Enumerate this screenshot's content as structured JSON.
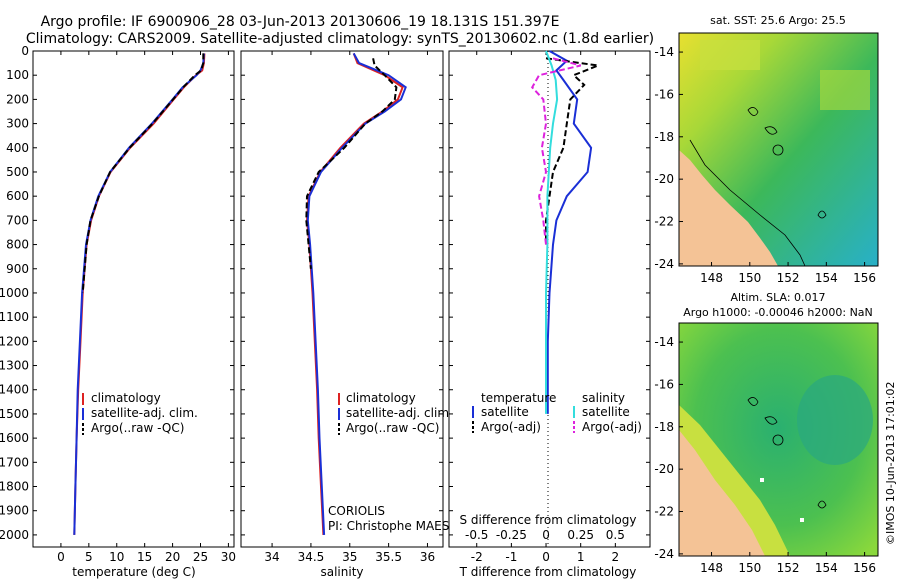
{
  "titles": {
    "line1": "Argo profile: IF 6900906_28 03-Jun-2013 20130606_19 18.131S 151.397E",
    "line2": "Climatology: CARS2009. Satellite-adjusted climatology: synTS_20130602.nc (1.8d earlier)"
  },
  "colors": {
    "climatology": "#dd2222",
    "satellite": "#1a2fd6",
    "argo": "#000000",
    "sal_satellite": "#33dddd",
    "sal_argo": "#dd22dd",
    "land": "#f4c396"
  },
  "chart_data": [
    {
      "type": "line",
      "id": "temperature",
      "xlabel": "temperature (deg C)",
      "ylabel": "",
      "xlim": [
        -5,
        31
      ],
      "ylim": [
        2050,
        0
      ],
      "xticks": [
        0,
        5,
        10,
        15,
        20,
        25,
        30
      ],
      "yticks": [
        0,
        100,
        200,
        300,
        400,
        500,
        600,
        700,
        800,
        900,
        1000,
        1100,
        1200,
        1300,
        1400,
        1500,
        1600,
        1700,
        1800,
        1900,
        2000
      ],
      "legend": [
        "climatology",
        "satellite-adj. clim.",
        "Argo(..raw -QC)"
      ],
      "legend_position": "bottom-center",
      "series": [
        {
          "name": "climatology",
          "color": "#dd2222",
          "pressure": [
            10,
            50,
            80,
            100,
            150,
            200,
            300,
            400,
            500,
            600,
            700,
            800,
            1000,
            1200,
            1400,
            1600,
            1800,
            2000
          ],
          "values": [
            25.7,
            25.6,
            25.3,
            24.2,
            22.0,
            20.2,
            16.6,
            12.4,
            8.9,
            6.8,
            5.4,
            4.6,
            3.9,
            3.5,
            3.1,
            2.8,
            2.6,
            2.4
          ]
        },
        {
          "name": "satellite-adj. clim.",
          "color": "#1a2fd6",
          "pressure": [
            10,
            50,
            80,
            100,
            150,
            200,
            300,
            400,
            500,
            600,
            700,
            800,
            1000,
            1200,
            1400,
            1600,
            1800,
            2000
          ],
          "values": [
            25.6,
            25.5,
            25.0,
            24.3,
            21.8,
            20.0,
            16.3,
            12.2,
            8.8,
            6.7,
            5.3,
            4.5,
            3.8,
            3.4,
            3.0,
            2.8,
            2.6,
            2.4
          ]
        },
        {
          "name": "Argo(..raw -QC)",
          "color": "#000000",
          "pressure": [
            10,
            50,
            80,
            100,
            150,
            200,
            300,
            400,
            500,
            600,
            700,
            800,
            1000
          ],
          "values": [
            25.5,
            25.5,
            25.1,
            24.0,
            21.9,
            20.1,
            16.4,
            12.3,
            8.8,
            6.8,
            5.3,
            4.6,
            3.9
          ]
        }
      ],
      "annotations": []
    },
    {
      "type": "line",
      "id": "salinity",
      "xlabel": "salinity",
      "xlim": [
        33.6,
        36.2
      ],
      "ylim": [
        2050,
        0
      ],
      "xticks": [
        34,
        34.5,
        35,
        35.5,
        36
      ],
      "legend": [
        "climatology",
        "satellite-adj. clim.",
        "Argo(..raw -QC)"
      ],
      "legend_position": "bottom-right",
      "series": [
        {
          "name": "climatology",
          "color": "#dd2222",
          "pressure": [
            10,
            50,
            100,
            150,
            200,
            250,
            300,
            400,
            500,
            600,
            700,
            800,
            1000,
            1200,
            1400,
            1600,
            1800,
            2000
          ],
          "values": [
            35.05,
            35.1,
            35.45,
            35.68,
            35.62,
            35.42,
            35.18,
            34.88,
            34.62,
            34.47,
            34.45,
            34.48,
            34.52,
            34.55,
            34.58,
            34.6,
            34.63,
            34.66
          ]
        },
        {
          "name": "satellite-adj. clim.",
          "color": "#1a2fd6",
          "pressure": [
            10,
            50,
            100,
            150,
            200,
            250,
            300,
            400,
            500,
            600,
            700,
            800,
            1000,
            1200,
            1400,
            1600,
            1800,
            2000
          ],
          "values": [
            35.05,
            35.12,
            35.5,
            35.72,
            35.66,
            35.45,
            35.2,
            34.9,
            34.63,
            34.48,
            34.46,
            34.49,
            34.53,
            34.56,
            34.59,
            34.61,
            34.64,
            34.67
          ]
        },
        {
          "name": "Argo(..raw -QC)",
          "color": "#000000",
          "pressure": [
            30,
            60,
            100,
            150,
            200,
            250,
            300,
            400,
            500,
            600,
            700,
            800,
            900
          ],
          "values": [
            35.3,
            35.32,
            35.45,
            35.6,
            35.58,
            35.42,
            35.2,
            34.93,
            34.6,
            34.45,
            34.44,
            34.47,
            34.5
          ]
        }
      ],
      "annotations": [
        "CORIOLIS",
        "PI: Christophe MAES"
      ]
    },
    {
      "type": "line",
      "id": "difference",
      "xlabel": "T difference from climatology",
      "xlabel_top": "S difference from climatology",
      "xlim": [
        -2.8,
        3.0
      ],
      "ylim": [
        2050,
        0
      ],
      "xticks": [
        -2,
        -1,
        0,
        1,
        2
      ],
      "xticks_s": [
        -0.5,
        -0.25,
        0,
        0.25,
        0.5
      ],
      "legend": {
        "temperature": "temperature",
        "salinity": "salinity",
        "items": [
          "satellite",
          "Argo(-adj)",
          "satellite",
          "Argo(-adj)"
        ]
      },
      "legend_position": "bottom-center",
      "series": [
        {
          "name": "T satellite",
          "color": "#1a2fd6",
          "pressure": [
            0,
            40,
            80,
            120,
            200,
            300,
            400,
            500,
            600,
            700,
            800,
            1000,
            1200,
            1400,
            1500
          ],
          "values": [
            0.1,
            0.6,
            0.3,
            0.5,
            0.9,
            0.8,
            1.3,
            1.2,
            0.6,
            0.3,
            0.2,
            0.1,
            0.05,
            0.05,
            0.05
          ]
        },
        {
          "name": "T Argo(-adj)",
          "color": "#000000",
          "pressure": [
            30,
            60,
            100,
            140,
            200,
            300,
            400,
            500,
            600,
            700,
            800
          ],
          "values": [
            0.0,
            1.5,
            0.8,
            1.1,
            0.7,
            0.6,
            0.5,
            0.2,
            0.1,
            0.0,
            0.0
          ]
        },
        {
          "name": "S satellite",
          "color": "#33dddd",
          "pressure": [
            0,
            60,
            120,
            200,
            300,
            400,
            500,
            600,
            800,
            1000,
            1300,
            1500
          ],
          "values": [
            0.0,
            0.04,
            0.07,
            0.08,
            0.05,
            0.03,
            0.02,
            0.01,
            0.01,
            0.0,
            0.0,
            0.0
          ]
        },
        {
          "name": "S Argo(-adj)",
          "color": "#dd22dd",
          "pressure": [
            30,
            60,
            100,
            150,
            200,
            300,
            400,
            500,
            600,
            700,
            800
          ],
          "values": [
            0.05,
            0.25,
            -0.05,
            -0.1,
            -0.02,
            0.0,
            -0.03,
            0.0,
            -0.05,
            -0.02,
            0.0
          ]
        }
      ]
    },
    {
      "type": "heatmap",
      "id": "sst_map",
      "title": "sat. SST: 25.6  Argo: 25.5",
      "xlim": [
        146.3,
        156.7
      ],
      "ylim": [
        -24.1,
        -13.1
      ],
      "xticks": [
        148,
        150,
        152,
        154,
        156
      ],
      "yticks": [
        -14,
        -16,
        -18,
        -20,
        -22,
        -24
      ]
    },
    {
      "type": "heatmap",
      "id": "sla_map",
      "title_line1": "Altim. SLA: 0.017",
      "title_line2": "Argo h1000: -0.00046  h2000: NaN",
      "xlim": [
        146.3,
        156.7
      ],
      "ylim": [
        -24.1,
        -13.1
      ],
      "xticks": [
        148,
        150,
        152,
        154,
        156
      ],
      "yticks": [
        -14,
        -16,
        -18,
        -20,
        -22,
        -24
      ]
    }
  ],
  "footer": {
    "stamp": "©IMOS 10-Jun-2013 17:01:02"
  }
}
